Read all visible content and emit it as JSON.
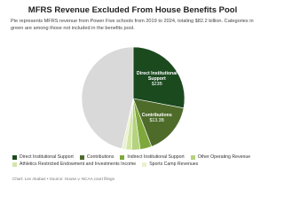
{
  "chart_data": {
    "type": "pie",
    "title": "MFRS Revenue Excluded From House Benefits Pool",
    "subtitle": "Pie represents MFRS revenue from Power Five schools from 2019 to 2024, totaling $82.2 billion. Categories in green are among those not included in the benefits pool.",
    "categories": [
      "Direct Institutional Support",
      "Contributions",
      "Indirect Institutional Support",
      "Other Operating Revenue",
      "Athletics Restricted Endowment and Investments Income",
      "Sports Camp Revenues",
      null
    ],
    "values": [
      23,
      13.3,
      3,
      2.2,
      1.5,
      1,
      38.2
    ],
    "value_labels": [
      "$23B",
      "$13.3B",
      null,
      null,
      null,
      null,
      null
    ],
    "colors": [
      "#1b4a1f",
      "#4e6b2a",
      "#7fa83c",
      "#b5d27e",
      "#d3e6a8",
      "#e9f2cf",
      "#d9d9d9"
    ],
    "source": "Chart: Lev Akabas • Source: House v. NCAA court filings"
  }
}
